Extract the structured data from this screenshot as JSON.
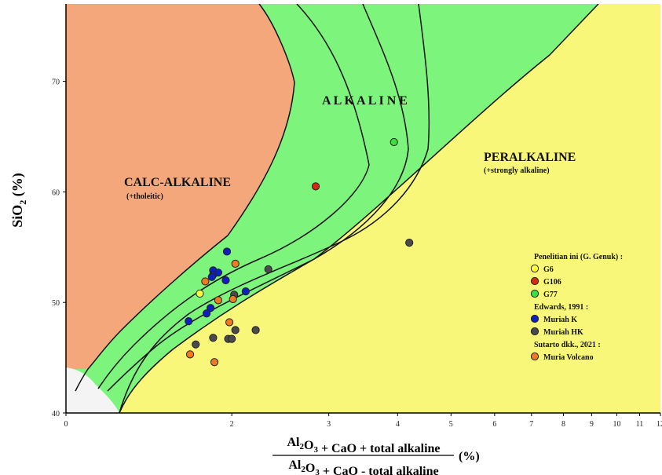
{
  "chart_data": {
    "type": "scatter",
    "ylabel_main": "SiO",
    "ylabel_sub": "2",
    "ylabel_unit": " (%)",
    "xlabel_numerator": [
      {
        "t": "Al",
        "s": "n"
      },
      {
        "t": "2",
        "s": "sub"
      },
      {
        "t": "O",
        "s": "n"
      },
      {
        "t": "3",
        "s": "sub"
      },
      {
        "t": " + CaO + total alkaline",
        "s": "n"
      }
    ],
    "xlabel_denominator": [
      {
        "t": "Al",
        "s": "n"
      },
      {
        "t": "2",
        "s": "sub"
      },
      {
        "t": "O",
        "s": "n"
      },
      {
        "t": "3",
        "s": "sub"
      },
      {
        "t": " + CaO - total alkaline",
        "s": "n"
      }
    ],
    "xlabel_unit": "(%)",
    "xscale": "log",
    "xlim": [
      1,
      12
    ],
    "ylim": [
      40,
      77
    ],
    "x_ticks": [
      {
        "v": 1,
        "label": "0"
      },
      {
        "v": 2,
        "label": "2"
      },
      {
        "v": 3,
        "label": "3"
      },
      {
        "v": 4,
        "label": "4"
      },
      {
        "v": 5,
        "label": "5"
      },
      {
        "v": 6,
        "label": "6"
      },
      {
        "v": 7,
        "label": "7"
      },
      {
        "v": 8,
        "label": "8"
      },
      {
        "v": 9,
        "label": "9"
      },
      {
        "v": 10,
        "label": "10"
      },
      {
        "v": 11,
        "label": "11"
      },
      {
        "v": 12,
        "label": "12"
      }
    ],
    "y_ticks": [
      40,
      50,
      60,
      70
    ],
    "regions": {
      "calc_alkaline": {
        "label": "CALC-ALKALINE",
        "sublabel": "(+tholeitic)",
        "color": "#F5A77C"
      },
      "alkaline": {
        "label": "A L K A L I N E",
        "color": "#7DF57D"
      },
      "peralkaline": {
        "label": "PERALKALINE",
        "sublabel": "(+strongly alkaline)",
        "color": "#F9F77A"
      }
    },
    "legend": {
      "placement": "right",
      "groups": [
        {
          "title": "Penelitian ini (G. Genuk) :",
          "items": [
            {
              "name": "G6",
              "color": "#FFFF3C"
            },
            {
              "name": "G106",
              "color": "#D62A10"
            },
            {
              "name": "G77",
              "color": "#3CE03C"
            }
          ]
        },
        {
          "title": "Edwards, 1991 :",
          "items": [
            {
              "name": "Muriah K",
              "color": "#1020C0"
            },
            {
              "name": "Muriah HK",
              "color": "#4A4A4A"
            }
          ]
        },
        {
          "title": "Sutarto dkk., 2021 :",
          "items": [
            {
              "name": "Muria Volcano",
              "color": "#EE7A22"
            }
          ]
        }
      ]
    },
    "series": [
      {
        "name": "G6",
        "color": "#FFFF3C",
        "points": [
          [
            1.75,
            50.8
          ]
        ]
      },
      {
        "name": "G106",
        "color": "#D62A10",
        "points": [
          [
            2.84,
            60.5
          ]
        ]
      },
      {
        "name": "G77",
        "color": "#3CE03C",
        "points": [
          [
            3.94,
            64.5
          ]
        ]
      },
      {
        "name": "Muriah K",
        "color": "#1020C0",
        "points": [
          [
            1.96,
            54.6
          ],
          [
            1.85,
            52.9
          ],
          [
            1.89,
            52.7
          ],
          [
            1.85,
            52.5
          ],
          [
            1.84,
            52.3
          ],
          [
            1.95,
            52.0
          ],
          [
            2.12,
            51.0
          ],
          [
            1.83,
            49.5
          ],
          [
            1.8,
            49.0
          ],
          [
            1.67,
            48.3
          ]
        ]
      },
      {
        "name": "Muriah HK",
        "color": "#4A4A4A",
        "points": [
          [
            4.2,
            55.4
          ],
          [
            2.33,
            53.0
          ],
          [
            2.02,
            50.7
          ],
          [
            2.21,
            47.5
          ],
          [
            2.03,
            47.5
          ],
          [
            1.85,
            46.8
          ],
          [
            1.97,
            46.7
          ],
          [
            2.0,
            46.7
          ],
          [
            1.72,
            46.2
          ]
        ]
      },
      {
        "name": "Muria Volcano",
        "color": "#EE7A22",
        "points": [
          [
            2.03,
            53.5
          ],
          [
            1.79,
            51.9
          ],
          [
            1.89,
            50.2
          ],
          [
            2.01,
            50.3
          ],
          [
            1.98,
            48.2
          ],
          [
            1.68,
            45.3
          ],
          [
            1.86,
            44.6
          ]
        ]
      }
    ]
  }
}
